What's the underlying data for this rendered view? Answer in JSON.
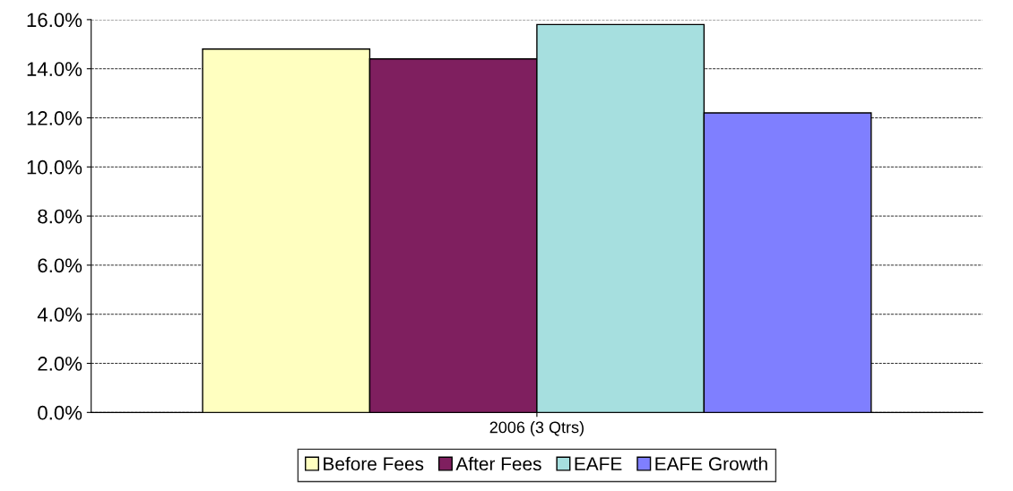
{
  "chart_data": {
    "type": "bar",
    "categories": [
      "2006 (3 Qtrs)"
    ],
    "series": [
      {
        "name": "Before Fees",
        "color": "#ffffc0",
        "values": [
          14.8
        ]
      },
      {
        "name": "After Fees",
        "color": "#7f1f5f",
        "values": [
          14.4
        ]
      },
      {
        "name": "EAFE",
        "color": "#a6dfdf",
        "values": [
          15.8
        ]
      },
      {
        "name": "EAFE Growth",
        "color": "#7f7fff",
        "values": [
          12.2
        ]
      }
    ],
    "ylim": [
      0,
      16
    ],
    "yticks": [
      {
        "value": 0,
        "label": "0.0%"
      },
      {
        "value": 2,
        "label": "2.0%"
      },
      {
        "value": 4,
        "label": "4.0%"
      },
      {
        "value": 6,
        "label": "6.0%"
      },
      {
        "value": 8,
        "label": "8.0%"
      },
      {
        "value": 10,
        "label": "10.0%"
      },
      {
        "value": 12,
        "label": "12.0%"
      },
      {
        "value": 14,
        "label": "14.0%"
      },
      {
        "value": 16,
        "label": "16.0%"
      }
    ],
    "grid": "y",
    "legend": "bottom"
  }
}
